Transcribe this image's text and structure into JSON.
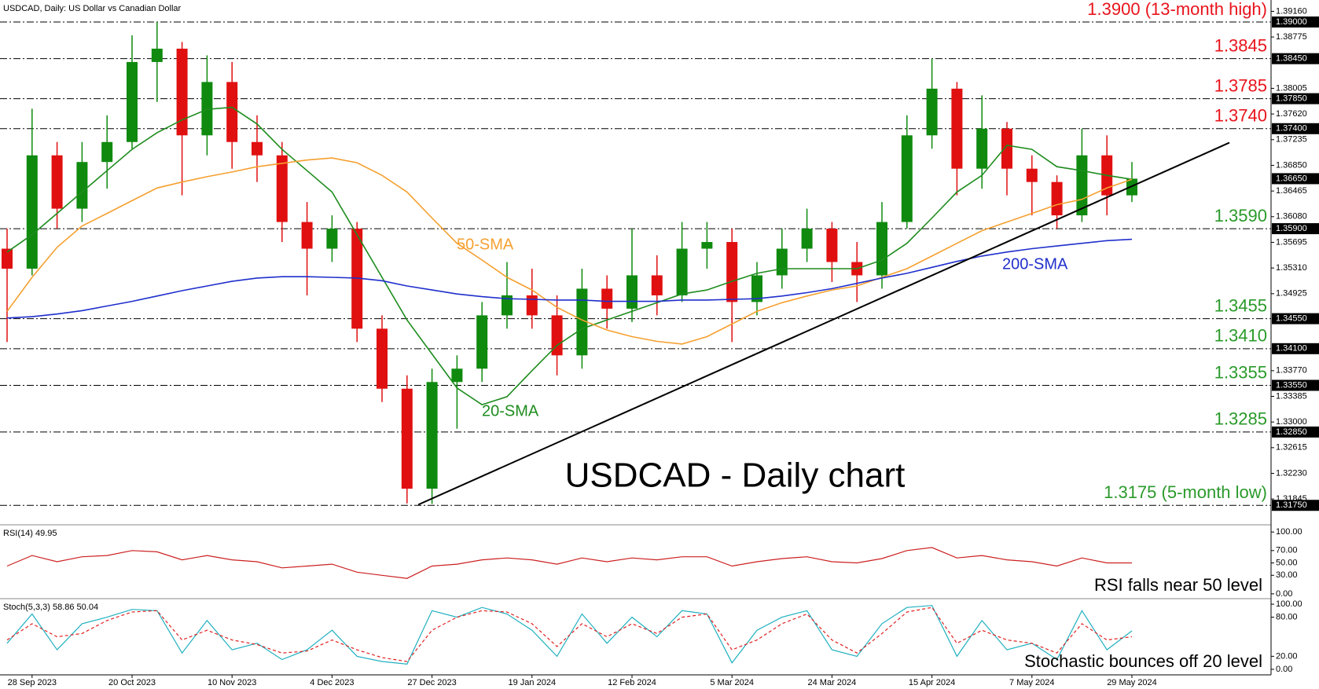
{
  "chart_data": [
    {
      "type": "candlestick",
      "title": "USDCAD, Daily:  US Dollar vs Canadian Dollar",
      "subtitle": "USDCAD - Daily chart",
      "categories": [
        null,
        "28 Sep 2023",
        null,
        null,
        null,
        "20 Oct 2023",
        null,
        null,
        null,
        "10 Nov 2023",
        null,
        null,
        null,
        "4 Dec 2023",
        null,
        null,
        null,
        "27 Dec 2023",
        null,
        null,
        null,
        "19 Jan 2024",
        null,
        null,
        null,
        "12 Feb 2024",
        null,
        null,
        null,
        "5 Mar 2024",
        null,
        null,
        null,
        "24 Mar 2024",
        null,
        null,
        null,
        "15 Apr 2024",
        null,
        null,
        null,
        "7 May 2024",
        null,
        null,
        null,
        "29 May 2024"
      ],
      "ohlc": [
        [
          1.356,
          1.359,
          1.342,
          1.353
        ],
        [
          1.353,
          1.377,
          1.352,
          1.37
        ],
        [
          1.37,
          1.372,
          1.359,
          1.362
        ],
        [
          1.362,
          1.372,
          1.36,
          1.369
        ],
        [
          1.369,
          1.376,
          1.365,
          1.372
        ],
        [
          1.372,
          1.388,
          1.371,
          1.384
        ],
        [
          1.384,
          1.39,
          1.378,
          1.386
        ],
        [
          1.386,
          1.387,
          1.364,
          1.373
        ],
        [
          1.373,
          1.385,
          1.37,
          1.381
        ],
        [
          1.381,
          1.384,
          1.368,
          1.372
        ],
        [
          1.372,
          1.376,
          1.366,
          1.37
        ],
        [
          1.37,
          1.372,
          1.357,
          1.36
        ],
        [
          1.36,
          1.363,
          1.349,
          1.356
        ],
        [
          1.356,
          1.361,
          1.354,
          1.359
        ],
        [
          1.359,
          1.36,
          1.342,
          1.344
        ],
        [
          1.344,
          1.346,
          1.333,
          1.335
        ],
        [
          1.335,
          1.337,
          1.3178,
          1.32
        ],
        [
          1.32,
          1.338,
          1.3177,
          1.336
        ],
        [
          1.336,
          1.34,
          1.329,
          1.338
        ],
        [
          1.338,
          1.348,
          1.336,
          1.346
        ],
        [
          1.346,
          1.354,
          1.344,
          1.349
        ],
        [
          1.349,
          1.353,
          1.344,
          1.346
        ],
        [
          1.346,
          1.349,
          1.337,
          1.34
        ],
        [
          1.34,
          1.353,
          1.338,
          1.35
        ],
        [
          1.35,
          1.352,
          1.344,
          1.347
        ],
        [
          1.347,
          1.359,
          1.345,
          1.352
        ],
        [
          1.352,
          1.355,
          1.346,
          1.349
        ],
        [
          1.349,
          1.36,
          1.348,
          1.356
        ],
        [
          1.356,
          1.36,
          1.353,
          1.357
        ],
        [
          1.357,
          1.359,
          1.342,
          1.348
        ],
        [
          1.348,
          1.354,
          1.346,
          1.352
        ],
        [
          1.352,
          1.359,
          1.35,
          1.356
        ],
        [
          1.356,
          1.362,
          1.354,
          1.359
        ],
        [
          1.359,
          1.36,
          1.351,
          1.354
        ],
        [
          1.354,
          1.357,
          1.348,
          1.352
        ],
        [
          1.352,
          1.363,
          1.35,
          1.36
        ],
        [
          1.36,
          1.376,
          1.359,
          1.373
        ],
        [
          1.373,
          1.3845,
          1.371,
          1.38
        ],
        [
          1.38,
          1.381,
          1.364,
          1.368
        ],
        [
          1.368,
          1.379,
          1.365,
          1.374
        ],
        [
          1.374,
          1.375,
          1.364,
          1.368
        ],
        [
          1.368,
          1.37,
          1.361,
          1.366
        ],
        [
          1.366,
          1.367,
          1.359,
          1.361
        ],
        [
          1.361,
          1.374,
          1.36,
          1.37
        ],
        [
          1.37,
          1.373,
          1.361,
          1.364
        ],
        [
          1.364,
          1.369,
          1.363,
          1.3665
        ]
      ],
      "up_color": "#0f8a0f",
      "down_color": "#e01010",
      "ylim": [
        1.3147,
        1.3933
      ],
      "yticks": [
        {
          "value": 1.3916,
          "label": "1.39160"
        },
        {
          "value": 1.38775,
          "label": "1.38775"
        },
        {
          "value": 1.38005,
          "label": "1.38005"
        },
        {
          "value": 1.3762,
          "label": "1.37620"
        },
        {
          "value": 1.37235,
          "label": "1.37235"
        },
        {
          "value": 1.3685,
          "label": "1.36850"
        },
        {
          "value": 1.36465,
          "label": "1.36465"
        },
        {
          "value": 1.3608,
          "label": "1.36080"
        },
        {
          "value": 1.35695,
          "label": "1.35695"
        },
        {
          "value": 1.3531,
          "label": "1.35310"
        },
        {
          "value": 1.34925,
          "label": "1.34925"
        },
        {
          "value": 1.3377,
          "label": "1.33770"
        },
        {
          "value": 1.33385,
          "label": "1.33385"
        },
        {
          "value": 1.33,
          "label": "1.33000"
        },
        {
          "value": 1.32615,
          "label": "1.32615"
        },
        {
          "value": 1.3223,
          "label": "1.32230"
        },
        {
          "value": 1.31845,
          "label": "1.31845"
        }
      ],
      "levels": [
        {
          "value": 1.39,
          "label": "1.39000",
          "note": "1.3900 (13-month high)",
          "color": "#e8141c"
        },
        {
          "value": 1.3845,
          "label": "1.38450",
          "note": "1.3845",
          "color": "#e8141c"
        },
        {
          "value": 1.3785,
          "label": "1.37850",
          "note": "1.3785",
          "color": "#e8141c"
        },
        {
          "value": 1.374,
          "label": "1.37400",
          "note": "1.3740",
          "color": "#e8141c"
        },
        {
          "value": 1.359,
          "label": "1.35900",
          "note": "1.3590",
          "color": "#2a9a2a"
        },
        {
          "value": 1.3455,
          "label": "1.34550",
          "note": "1.3455",
          "color": "#2a9a2a"
        },
        {
          "value": 1.341,
          "label": "1.34100",
          "note": "1.3410",
          "color": "#2a9a2a"
        },
        {
          "value": 1.3355,
          "label": "1.33550",
          "note": "1.3355",
          "color": "#2a9a2a"
        },
        {
          "value": 1.3285,
          "label": "1.32850",
          "note": "1.3285",
          "color": "#2a9a2a"
        },
        {
          "value": 1.3175,
          "label": "1.31750",
          "note": "1.3175 (5-month low)",
          "color": "#2a9a2a"
        }
      ],
      "last_price": {
        "value": 1.3665,
        "label": "1.36650"
      },
      "series": [
        {
          "name": "20-SMA",
          "color": "#1e8c1e",
          "values": [
            1.3555,
            1.3581,
            1.3613,
            1.3645,
            1.3677,
            1.3709,
            1.3734,
            1.3753,
            1.3769,
            1.3772,
            1.3747,
            1.3709,
            1.3677,
            1.3645,
            1.3581,
            1.3517,
            1.3453,
            1.3402,
            1.3351,
            1.3326,
            1.3338,
            1.3377,
            1.3415,
            1.344,
            1.3453,
            1.3466,
            1.3479,
            1.3492,
            1.3498,
            1.3511,
            1.3523,
            1.353,
            1.353,
            1.353,
            1.353,
            1.3543,
            1.3568,
            1.3606,
            1.3645,
            1.367,
            1.3715,
            1.3709,
            1.3683,
            1.3677,
            1.367,
            1.3664
          ]
        },
        {
          "name": "50-SMA",
          "color": "#f5a030",
          "values": [
            1.3466,
            1.3517,
            1.3562,
            1.3594,
            1.3613,
            1.3632,
            1.3651,
            1.366,
            1.3668,
            1.3675,
            1.3683,
            1.3688,
            1.3693,
            1.3696,
            1.3689,
            1.367,
            1.3645,
            1.3606,
            1.3568,
            1.3543,
            1.3517,
            1.3498,
            1.3472,
            1.3453,
            1.3438,
            1.3428,
            1.3421,
            1.3417,
            1.3428,
            1.3447,
            1.3466,
            1.3479,
            1.3489,
            1.3498,
            1.3504,
            1.3517,
            1.353,
            1.3549,
            1.3568,
            1.3587,
            1.36,
            1.3613,
            1.3626,
            1.3634,
            1.3651,
            1.3664
          ]
        },
        {
          "name": "200-SMA",
          "color": "#1f2fcc",
          "values": [
            1.3456,
            1.3458,
            1.3462,
            1.3467,
            1.3474,
            1.3481,
            1.3489,
            1.3497,
            1.3504,
            1.3511,
            1.3516,
            1.3518,
            1.3518,
            1.3517,
            1.3516,
            1.3512,
            1.3504,
            1.3498,
            1.3492,
            1.3488,
            1.3485,
            1.3484,
            1.3483,
            1.3483,
            1.3481,
            1.3481,
            1.3481,
            1.3483,
            1.3483,
            1.3484,
            1.3485,
            1.3489,
            1.3494,
            1.35,
            1.3508,
            1.3516,
            1.3523,
            1.3532,
            1.3541,
            1.3549,
            1.3555,
            1.356,
            1.3564,
            1.3568,
            1.3572,
            1.3574
          ]
        }
      ],
      "trendline": {
        "color": "#000000",
        "x": [
          16.45,
          48.9
        ],
        "y": [
          1.3176,
          1.3719
        ]
      }
    },
    {
      "type": "line",
      "title": "RSI(14) 49.95",
      "annotation": "RSI falls near 50 level",
      "ylim": [
        -6.5,
        110.4
      ],
      "yticks": [
        {
          "value": 100,
          "label": "100.00"
        },
        {
          "value": 70,
          "label": "70.00"
        },
        {
          "value": 50,
          "label": "50.00"
        },
        {
          "value": 30,
          "label": "30.00"
        },
        {
          "value": 0,
          "label": "0.00"
        }
      ],
      "series": [
        {
          "color": "#cc2020",
          "values": [
            45,
            62,
            52,
            60,
            62,
            70,
            68,
            55,
            62,
            55,
            52,
            42,
            45,
            48,
            35,
            30,
            25,
            45,
            48,
            55,
            58,
            55,
            48,
            58,
            52,
            58,
            55,
            60,
            60,
            45,
            52,
            57,
            60,
            52,
            50,
            57,
            70,
            75,
            58,
            62,
            55,
            52,
            45,
            58,
            50,
            50
          ]
        }
      ]
    },
    {
      "type": "line",
      "title": "Stoch(5,3,3) 58.86 50.04",
      "annotation": "Stochastic bounces off 20 level",
      "ylim": [
        -7.3,
        107.3
      ],
      "yticks": [
        {
          "value": 100,
          "label": "100.00"
        },
        {
          "value": 80,
          "label": "80.00"
        },
        {
          "value": 20,
          "label": "20.00"
        },
        {
          "value": 0,
          "label": "0.00"
        }
      ],
      "series": [
        {
          "color": "#20b0c0",
          "dash": false,
          "values": [
            40,
            85,
            30,
            70,
            80,
            92,
            90,
            25,
            75,
            30,
            40,
            15,
            30,
            60,
            20,
            12,
            8,
            90,
            80,
            95,
            85,
            60,
            20,
            85,
            40,
            80,
            50,
            90,
            85,
            10,
            60,
            80,
            90,
            30,
            20,
            70,
            95,
            98,
            20,
            75,
            30,
            40,
            15,
            90,
            30,
            59
          ]
        },
        {
          "color": "#e02020",
          "dash": true,
          "values": [
            45,
            70,
            50,
            55,
            75,
            88,
            90,
            45,
            60,
            45,
            38,
            25,
            28,
            45,
            30,
            18,
            12,
            60,
            80,
            90,
            88,
            70,
            35,
            70,
            50,
            70,
            55,
            80,
            85,
            30,
            45,
            70,
            85,
            45,
            25,
            55,
            88,
            95,
            40,
            60,
            45,
            40,
            25,
            70,
            45,
            50
          ]
        }
      ]
    }
  ]
}
